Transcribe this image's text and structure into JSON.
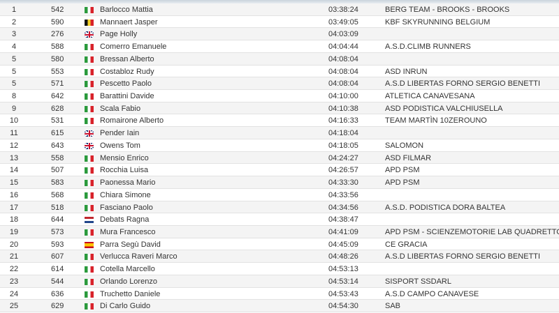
{
  "results": [
    {
      "rank": "1",
      "bib": "542",
      "flag": "it",
      "name": "Barlocco Mattia",
      "time": "03:38:24",
      "club": "BERG TEAM - BROOKS - BROOKS"
    },
    {
      "rank": "2",
      "bib": "590",
      "flag": "be",
      "name": "Mannaert Jasper",
      "time": "03:49:05",
      "club": "KBF SKYRUNNING BELGIUM"
    },
    {
      "rank": "3",
      "bib": "276",
      "flag": "gb",
      "name": "Page Holly",
      "time": "04:03:09",
      "club": ""
    },
    {
      "rank": "4",
      "bib": "588",
      "flag": "it",
      "name": "Comerro Emanuele",
      "time": "04:04:44",
      "club": "A.S.D.CLIMB RUNNERS"
    },
    {
      "rank": "5",
      "bib": "580",
      "flag": "it",
      "name": "Bressan Alberto",
      "time": "04:08:04",
      "club": ""
    },
    {
      "rank": "5",
      "bib": "553",
      "flag": "it",
      "name": "Costabloz Rudy",
      "time": "04:08:04",
      "club": "ASD INRUN"
    },
    {
      "rank": "5",
      "bib": "571",
      "flag": "it",
      "name": "Pescetto Paolo",
      "time": "04:08:04",
      "club": "A.S.D LIBERTAS FORNO SERGIO BENETTI"
    },
    {
      "rank": "8",
      "bib": "642",
      "flag": "it",
      "name": "Barattini Davide",
      "time": "04:10:00",
      "club": "ATLETICA CANAVESANA"
    },
    {
      "rank": "9",
      "bib": "628",
      "flag": "it",
      "name": "Scala Fabio",
      "time": "04:10:38",
      "club": "ASD PODISTICA VALCHIUSELLA"
    },
    {
      "rank": "10",
      "bib": "531",
      "flag": "it",
      "name": "Romairone Alberto",
      "time": "04:16:33",
      "club": "TEAM MARTÌN 10ZEROUNO"
    },
    {
      "rank": "11",
      "bib": "615",
      "flag": "gb",
      "name": "Pender Iain",
      "time": "04:18:04",
      "club": ""
    },
    {
      "rank": "12",
      "bib": "643",
      "flag": "gb",
      "name": "Owens Tom",
      "time": "04:18:05",
      "club": "SALOMON"
    },
    {
      "rank": "13",
      "bib": "558",
      "flag": "it",
      "name": "Mensio Enrico",
      "time": "04:24:27",
      "club": "ASD FILMAR"
    },
    {
      "rank": "14",
      "bib": "507",
      "flag": "it",
      "name": "Rocchia Luisa",
      "time": "04:26:57",
      "club": "APD PSM"
    },
    {
      "rank": "15",
      "bib": "583",
      "flag": "it",
      "name": "Paonessa Mario",
      "time": "04:33:30",
      "club": "APD PSM"
    },
    {
      "rank": "16",
      "bib": "568",
      "flag": "it",
      "name": "Chiara Simone",
      "time": "04:33:56",
      "club": ""
    },
    {
      "rank": "17",
      "bib": "518",
      "flag": "it",
      "name": "Fasciano Paolo",
      "time": "04:34:56",
      "club": "A.S.D. PODISTICA DORA BALTEA"
    },
    {
      "rank": "18",
      "bib": "644",
      "flag": "nl",
      "name": "Debats Ragna",
      "time": "04:38:47",
      "club": ""
    },
    {
      "rank": "19",
      "bib": "573",
      "flag": "it",
      "name": "Mura Francesco",
      "time": "04:41:09",
      "club": "APD PSM - SCIENZEMOTORIE LAB QUADRETTONI"
    },
    {
      "rank": "20",
      "bib": "593",
      "flag": "es",
      "name": "Parra Segù David",
      "time": "04:45:09",
      "club": "CE GRACIA"
    },
    {
      "rank": "21",
      "bib": "607",
      "flag": "it",
      "name": "Verlucca Raveri Marco",
      "time": "04:48:26",
      "club": "A.S.D LIBERTAS FORNO SERGIO BENETTI"
    },
    {
      "rank": "22",
      "bib": "614",
      "flag": "it",
      "name": "Cotella Marcello",
      "time": "04:53:13",
      "club": ""
    },
    {
      "rank": "23",
      "bib": "544",
      "flag": "it",
      "name": "Orlando Lorenzo",
      "time": "04:53:14",
      "club": "SISPORT SSDARL"
    },
    {
      "rank": "24",
      "bib": "636",
      "flag": "it",
      "name": "Truchetto Daniele",
      "time": "04:53:43",
      "club": "A.S.D CAMPO CANAVESE"
    },
    {
      "rank": "25",
      "bib": "629",
      "flag": "it",
      "name": "Di Carlo Guido",
      "time": "04:54:30",
      "club": "SAB"
    }
  ]
}
